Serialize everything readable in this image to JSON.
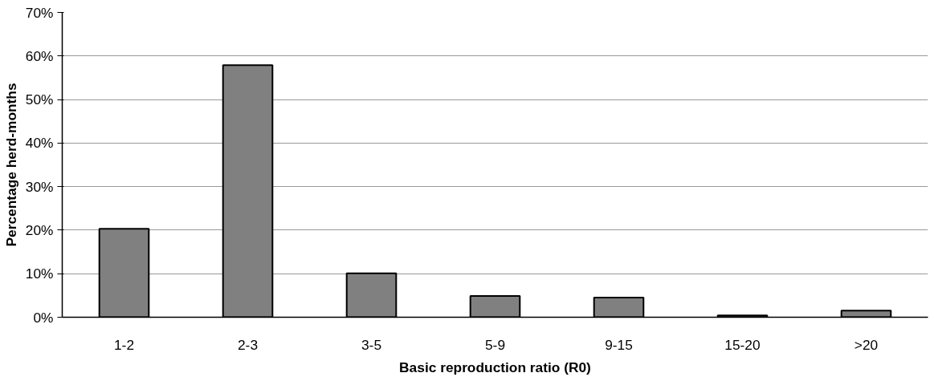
{
  "chart_data": {
    "type": "bar",
    "xlabel": "Basic reproduction ratio (R0)",
    "ylabel": "Percentage herd-months",
    "categories": [
      "1-2",
      "2-3",
      "3-5",
      "5-9",
      "9-15",
      "15-20",
      ">20"
    ],
    "values": [
      20.3,
      57.9,
      10.1,
      4.9,
      4.5,
      0.4,
      1.5
    ],
    "color": "#808080",
    "ylim": [
      0,
      70
    ],
    "yticks": [
      {
        "value": 0,
        "label": "0%"
      },
      {
        "value": 10,
        "label": "10%"
      },
      {
        "value": 20,
        "label": "20%"
      },
      {
        "value": 30,
        "label": "30%"
      },
      {
        "value": 40,
        "label": "40%"
      },
      {
        "value": 50,
        "label": "50%"
      },
      {
        "value": 60,
        "label": "60%"
      },
      {
        "value": 70,
        "label": "70%"
      }
    ],
    "grid": "y"
  }
}
